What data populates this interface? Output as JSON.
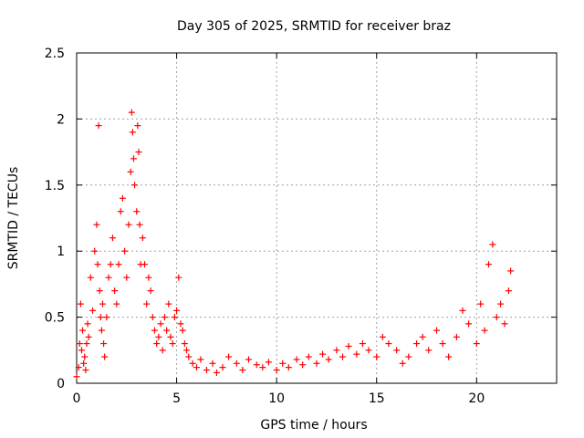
{
  "chart_data": {
    "type": "scatter",
    "title": "Day 305 of 2025, SRMTID for receiver braz",
    "xlabel": "GPS time / hours",
    "ylabel": "SRMTID / TECUs",
    "xlim": [
      0,
      24
    ],
    "ylim": [
      0,
      2.5
    ],
    "x_ticks": [
      0,
      5,
      10,
      15,
      20
    ],
    "x_tick_labels": [
      "0",
      "5",
      "10",
      "15",
      "20"
    ],
    "y_ticks": [
      0,
      0.5,
      1,
      1.5,
      2,
      2.5
    ],
    "y_tick_labels": [
      "0",
      "0.5",
      "1",
      "1.5",
      "2",
      "2.5"
    ],
    "grid": true,
    "marker": "+",
    "series": [
      {
        "name": "SRMTID",
        "color": "#ff0000",
        "x": [
          0.0,
          0.1,
          0.15,
          0.2,
          0.25,
          0.3,
          0.35,
          0.4,
          0.45,
          0.5,
          0.55,
          0.6,
          0.7,
          0.8,
          0.9,
          1.0,
          1.05,
          1.1,
          1.15,
          1.2,
          1.25,
          1.3,
          1.35,
          1.4,
          1.5,
          1.6,
          1.7,
          1.8,
          1.9,
          2.0,
          2.1,
          2.2,
          2.3,
          2.4,
          2.5,
          2.6,
          2.7,
          2.75,
          2.8,
          2.85,
          2.9,
          3.0,
          3.05,
          3.1,
          3.15,
          3.2,
          3.3,
          3.4,
          3.5,
          3.6,
          3.7,
          3.8,
          3.9,
          4.0,
          4.1,
          4.2,
          4.3,
          4.4,
          4.5,
          4.6,
          4.7,
          4.8,
          4.9,
          5.0,
          5.1,
          5.2,
          5.3,
          5.4,
          5.5,
          5.6,
          5.8,
          6.0,
          6.2,
          6.5,
          6.8,
          7.0,
          7.3,
          7.6,
          8.0,
          8.3,
          8.6,
          9.0,
          9.3,
          9.6,
          10.0,
          10.3,
          10.6,
          11.0,
          11.3,
          11.6,
          12.0,
          12.3,
          12.6,
          13.0,
          13.3,
          13.6,
          14.0,
          14.3,
          14.6,
          15.0,
          15.3,
          15.6,
          16.0,
          16.3,
          16.6,
          17.0,
          17.3,
          17.6,
          18.0,
          18.3,
          18.6,
          19.0,
          19.3,
          19.6,
          20.0,
          20.2,
          20.4,
          20.6,
          20.8,
          21.0,
          21.2,
          21.4,
          21.6,
          21.7
        ],
        "y": [
          0.05,
          0.12,
          0.3,
          0.6,
          0.25,
          0.4,
          0.15,
          0.2,
          0.1,
          0.3,
          0.45,
          0.35,
          0.8,
          0.55,
          1.0,
          1.2,
          0.9,
          1.95,
          0.7,
          0.5,
          0.4,
          0.6,
          0.3,
          0.2,
          0.5,
          0.8,
          0.9,
          1.1,
          0.7,
          0.6,
          0.9,
          1.3,
          1.4,
          1.0,
          0.8,
          1.2,
          1.6,
          2.05,
          1.9,
          1.7,
          1.5,
          1.3,
          1.95,
          1.75,
          1.2,
          0.9,
          1.1,
          0.9,
          0.6,
          0.8,
          0.7,
          0.5,
          0.4,
          0.3,
          0.35,
          0.45,
          0.25,
          0.5,
          0.4,
          0.6,
          0.35,
          0.3,
          0.5,
          0.55,
          0.8,
          0.45,
          0.4,
          0.3,
          0.25,
          0.2,
          0.15,
          0.12,
          0.18,
          0.1,
          0.15,
          0.08,
          0.12,
          0.2,
          0.15,
          0.1,
          0.18,
          0.14,
          0.12,
          0.16,
          0.1,
          0.15,
          0.12,
          0.18,
          0.14,
          0.2,
          0.15,
          0.22,
          0.18,
          0.25,
          0.2,
          0.28,
          0.22,
          0.3,
          0.25,
          0.2,
          0.35,
          0.3,
          0.25,
          0.15,
          0.2,
          0.3,
          0.35,
          0.25,
          0.4,
          0.3,
          0.2,
          0.35,
          0.55,
          0.45,
          0.3,
          0.6,
          0.4,
          0.9,
          1.05,
          0.5,
          0.6,
          0.45,
          0.7,
          0.85
        ]
      }
    ]
  }
}
